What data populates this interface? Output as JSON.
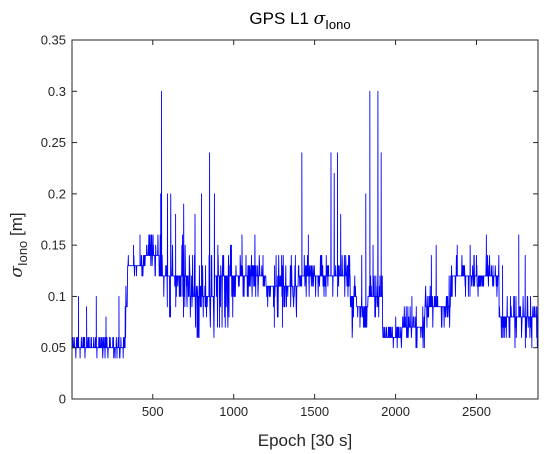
{
  "chart_data": {
    "type": "line",
    "title": {
      "prefix": "GPS L1 ",
      "symbol": "σ",
      "subscript": "Iono"
    },
    "xlabel": "Epoch [30 s]",
    "ylabel": {
      "symbol": "σ",
      "subscript": "Iono",
      "suffix": " [m]"
    },
    "xlim": [
      1,
      2880
    ],
    "ylim": [
      0,
      0.35
    ],
    "xticks": [
      500,
      1000,
      1500,
      2000,
      2500
    ],
    "yticks": [
      0,
      0.05,
      0.1,
      0.15,
      0.2,
      0.25,
      0.3,
      0.35
    ],
    "ytick_labels": [
      "0",
      "0.05",
      "0.1",
      "0.15",
      "0.2",
      "0.25",
      "0.3",
      "0.35"
    ],
    "grid": false,
    "line_color": "#0000ff",
    "series": [
      {
        "segments": [
          {
            "x": [
              1,
              330
            ],
            "base": 0.05,
            "range": [
              0.04,
              0.065
            ],
            "spikes": [
              [
                40,
                0.1
              ],
              [
                90,
                0.09
              ],
              [
                150,
                0.1
              ],
              [
                210,
                0.08
              ],
              [
                290,
                0.1
              ]
            ]
          },
          {
            "x": [
              330,
              345
            ],
            "base": 0.09,
            "range": [
              0.06,
              0.12
            ]
          },
          {
            "x": [
              345,
              450
            ],
            "base": 0.13,
            "range": [
              0.12,
              0.14
            ],
            "spikes": [
              [
                420,
                0.16
              ],
              [
                380,
                0.15
              ]
            ]
          },
          {
            "x": [
              450,
              540
            ],
            "base": 0.14,
            "range": [
              0.12,
              0.16
            ]
          },
          {
            "x": [
              540,
              560
            ],
            "base": 0.12,
            "range": [
              0.08,
              0.16
            ],
            "spikes": [
              [
                553,
                0.3
              ],
              [
                548,
                0.2
              ]
            ]
          },
          {
            "x": [
              560,
              720
            ],
            "base": 0.12,
            "range": [
              0.08,
              0.16
            ],
            "spikes": [
              [
                590,
                0.2
              ],
              [
                610,
                0.2
              ],
              [
                640,
                0.18
              ],
              [
                690,
                0.19
              ]
            ]
          },
          {
            "x": [
              720,
              880
            ],
            "base": 0.1,
            "range": [
              0.06,
              0.14
            ],
            "spikes": [
              [
                760,
                0.18
              ],
              [
                800,
                0.2
              ],
              [
                850,
                0.24
              ],
              [
                880,
                0.2
              ]
            ]
          },
          {
            "x": [
              880,
              1000
            ],
            "base": 0.12,
            "range": [
              0.06,
              0.16
            ],
            "spikes": [
              [
                950,
                0.12
              ],
              [
                970,
                0.08
              ]
            ]
          },
          {
            "x": [
              1000,
              1200
            ],
            "base": 0.12,
            "range": [
              0.1,
              0.14
            ],
            "spikes": [
              [
                1050,
                0.16
              ],
              [
                1130,
                0.16
              ],
              [
                1180,
                0.14
              ]
            ]
          },
          {
            "x": [
              1200,
              1400
            ],
            "base": 0.11,
            "range": [
              0.08,
              0.14
            ],
            "spikes": [
              [
                1250,
                0.07
              ],
              [
                1300,
                0.07
              ],
              [
                1380,
                0.14
              ]
            ]
          },
          {
            "x": [
              1400,
              1720
            ],
            "base": 0.12,
            "range": [
              0.1,
              0.14
            ],
            "spikes": [
              [
                1420,
                0.24
              ],
              [
                1460,
                0.16
              ],
              [
                1600,
                0.24
              ],
              [
                1620,
                0.22
              ],
              [
                1640,
                0.24
              ],
              [
                1660,
                0.18
              ]
            ]
          },
          {
            "x": [
              1720,
              1760
            ],
            "base": 0.1,
            "range": [
              0.06,
              0.12
            ]
          },
          {
            "x": [
              1760,
              1830
            ],
            "base": 0.09,
            "range": [
              0.07,
              0.1
            ],
            "spikes": [
              [
                1790,
                0.14
              ],
              [
                1815,
                0.2
              ]
            ]
          },
          {
            "x": [
              1830,
              1920
            ],
            "base": 0.1,
            "range": [
              0.08,
              0.12
            ],
            "spikes": [
              [
                1840,
                0.3
              ],
              [
                1860,
                0.15
              ],
              [
                1890,
                0.3
              ],
              [
                1910,
                0.24
              ]
            ]
          },
          {
            "x": [
              1920,
              2040
            ],
            "base": 0.06,
            "range": [
              0.05,
              0.075
            ],
            "spikes": [
              [
                2000,
                0.08
              ]
            ]
          },
          {
            "x": [
              2040,
              2180
            ],
            "base": 0.07,
            "range": [
              0.05,
              0.09
            ],
            "spikes": [
              [
                2100,
                0.1
              ]
            ]
          },
          {
            "x": [
              2180,
              2340
            ],
            "base": 0.09,
            "range": [
              0.07,
              0.11
            ],
            "spikes": [
              [
                2220,
                0.14
              ],
              [
                2250,
                0.15
              ],
              [
                2330,
                0.12
              ]
            ]
          },
          {
            "x": [
              2340,
              2640
            ],
            "base": 0.12,
            "range": [
              0.1,
              0.14
            ],
            "spikes": [
              [
                2380,
                0.15
              ],
              [
                2460,
                0.15
              ],
              [
                2560,
                0.16
              ],
              [
                2600,
                0.12
              ]
            ]
          },
          {
            "x": [
              2640,
              2880
            ],
            "base": 0.075,
            "range": [
              0.05,
              0.1
            ],
            "spikes": [
              [
                2660,
                0.13
              ],
              [
                2760,
                0.16
              ],
              [
                2800,
                0.14
              ]
            ]
          }
        ]
      }
    ]
  }
}
